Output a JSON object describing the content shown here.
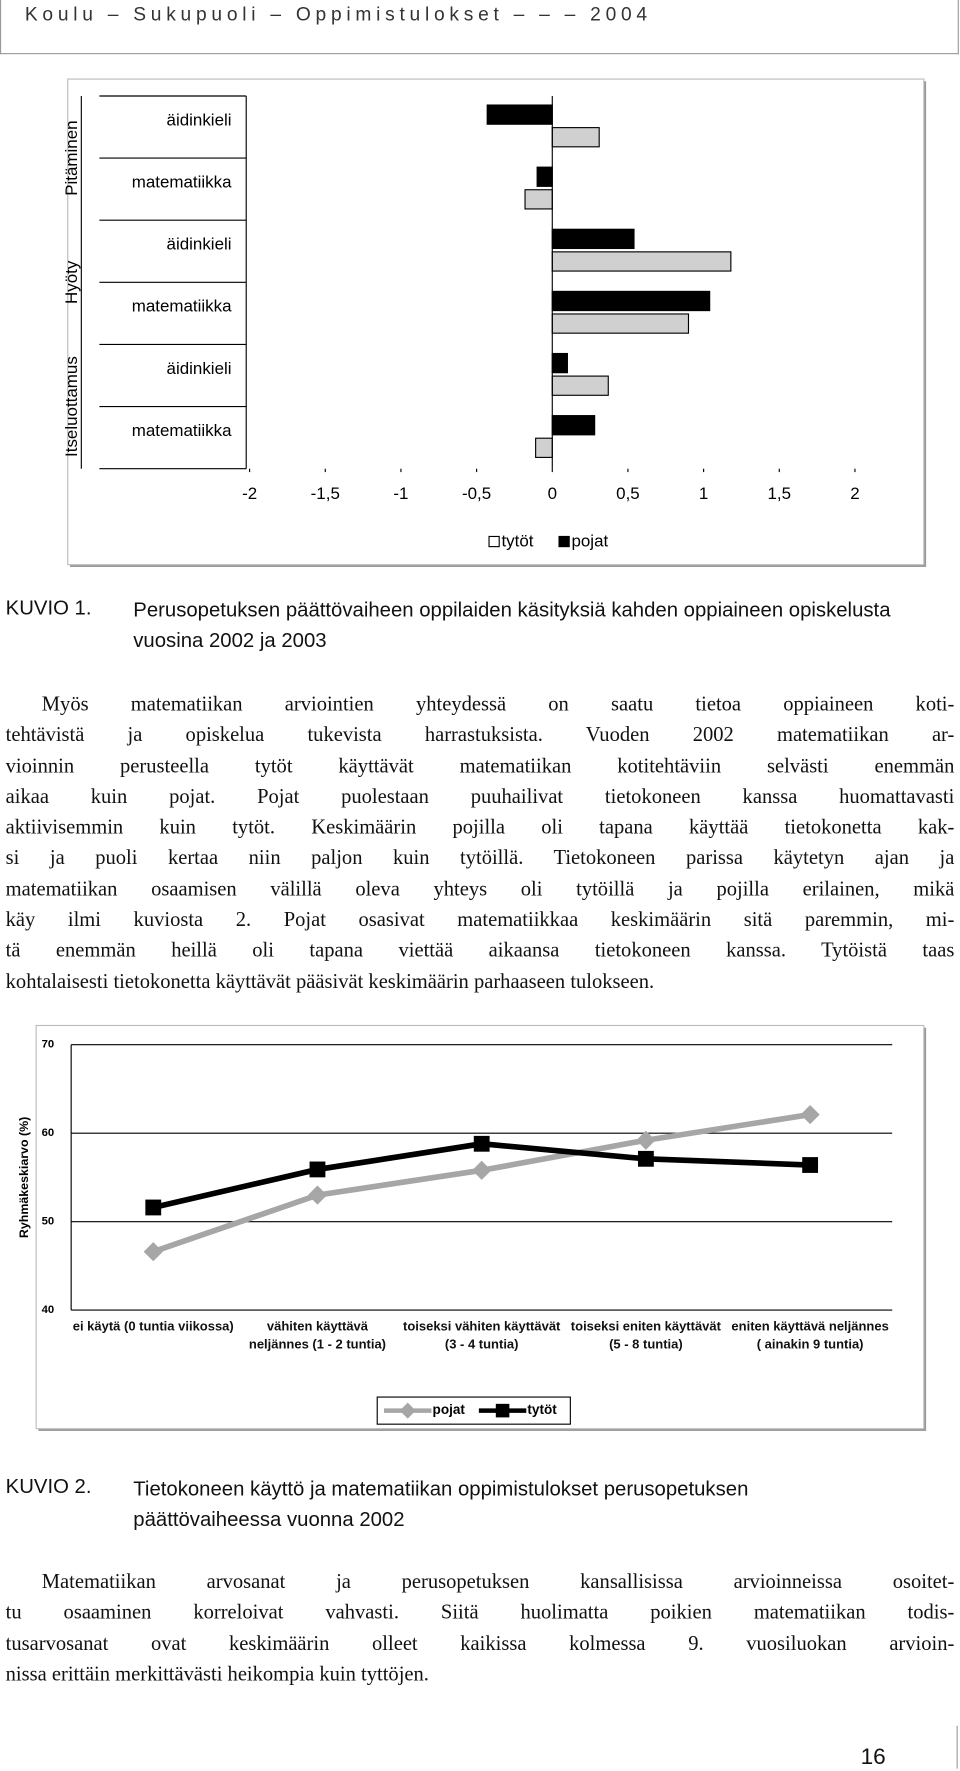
{
  "header": "Koulu – Sukupuoli – Oppimistulokset – – – 2004",
  "chart_data": [
    {
      "type": "bar",
      "orientation": "horizontal",
      "groups": [
        "Pitäminen",
        "Hyöty",
        "Itseluottamus"
      ],
      "categories": [
        "äidinkieli",
        "matematiikka",
        "äidinkieli",
        "matematiikka",
        "äidinkieli",
        "matematiikka"
      ],
      "series": [
        {
          "name": "tytöt",
          "color": "#d0d0d0",
          "values": [
            0.31,
            -0.18,
            1.18,
            0.9,
            0.37,
            -0.11
          ]
        },
        {
          "name": "pojat",
          "color": "#000000",
          "values": [
            -0.43,
            -0.1,
            0.54,
            1.04,
            0.1,
            0.28
          ]
        }
      ],
      "xlim": [
        -2,
        2
      ],
      "xticks": [
        -2,
        {
          "value": -1.5,
          "label": "-1,5"
        },
        -1,
        {
          "value": -0.5,
          "label": "-0,5"
        },
        0,
        {
          "value": 0.5,
          "label": "0,5"
        },
        1,
        {
          "value": 1.5,
          "label": "1,5"
        },
        2
      ],
      "legend": "bottom"
    },
    {
      "type": "line",
      "ylabel": "Ryhmäkeskiarvo (%)",
      "categories": [
        "ei käytä (0 tuntia viikossa)",
        "vähiten käyttävä neljännes (1 - 2 tuntia)",
        "toiseksi vähiten käyttävät (3 - 4 tuntia)",
        "toiseksi eniten käyttävät (5 - 8 tuntia)",
        "eniten käyttävä neljännes ( ainakin 9 tuntia)"
      ],
      "series": [
        {
          "name": "pojat",
          "color": "#a6a6a6",
          "values": [
            46.6,
            53.0,
            55.8,
            59.2,
            62.1
          ]
        },
        {
          "name": "tytöt",
          "color": "#000000",
          "values": [
            51.6,
            55.9,
            58.8,
            57.1,
            56.4
          ]
        }
      ],
      "ylim": [
        40,
        70
      ],
      "yticks": [
        40,
        50,
        60,
        70
      ],
      "grid": true,
      "legend": "bottom"
    }
  ],
  "captions": [
    {
      "label": "KUVIO 1.",
      "text": "Perusopetuksen päättövaiheen oppilaiden käsityksiä kahden oppiaineen opiskelusta vuosina 2002 ja 2003"
    },
    {
      "label": "KUVIO 2.",
      "text": "Tietokoneen käyttö ja matematiikan oppimistulokset perusopetuksen päättövaiheessa vuonna 2002"
    }
  ],
  "paragraphs": [
    {
      "lines": [
        "Myös matematiikan arviointien yhteydessä on saatu tietoa oppiaineen koti-",
        "tehtävistä ja opiskelua tukevista harrastuksista. Vuoden 2002 matematiikan ar-",
        "vioinnin perusteella tytöt käyttävät matematiikan kotitehtäviin selvästi enemmän",
        "aikaa kuin pojat. Pojat puolestaan puuhailivat tietokoneen kanssa huomattavasti",
        "aktiivisemmin kuin tytöt. Keskimäärin pojilla oli tapana käyttää tietokonetta kak-",
        "si ja puoli kertaa niin paljon kuin tytöillä. Tietokoneen parissa käytetyn ajan ja",
        "matematiikan osaamisen välillä oleva yhteys oli tytöillä ja pojilla erilainen, mikä",
        "käy ilmi kuviosta 2. Pojat osasivat matematiikkaa keskimäärin sitä paremmin, mi-",
        "tä enemmän heillä oli tapana viettää aikaansa tietokoneen kanssa. Tytöistä taas",
        "kohtalaisesti tietokonetta käyttävät pääsivät keskimäärin parhaaseen tulokseen."
      ]
    },
    {
      "lines": [
        "Matematiikan arvosanat ja perusopetuksen kansallisissa arvioinneissa osoitet-",
        "tu osaaminen korreloivat vahvasti. Siitä huolimatta poikien matematiikan todis-",
        "tusarvosanat ovat keskimäärin olleet kaikissa kolmessa 9. vuosiluokan arvioin-",
        "nissa erittäin merkittävästi heikompia kuin tyttöjen."
      ]
    }
  ],
  "page_number": "16"
}
